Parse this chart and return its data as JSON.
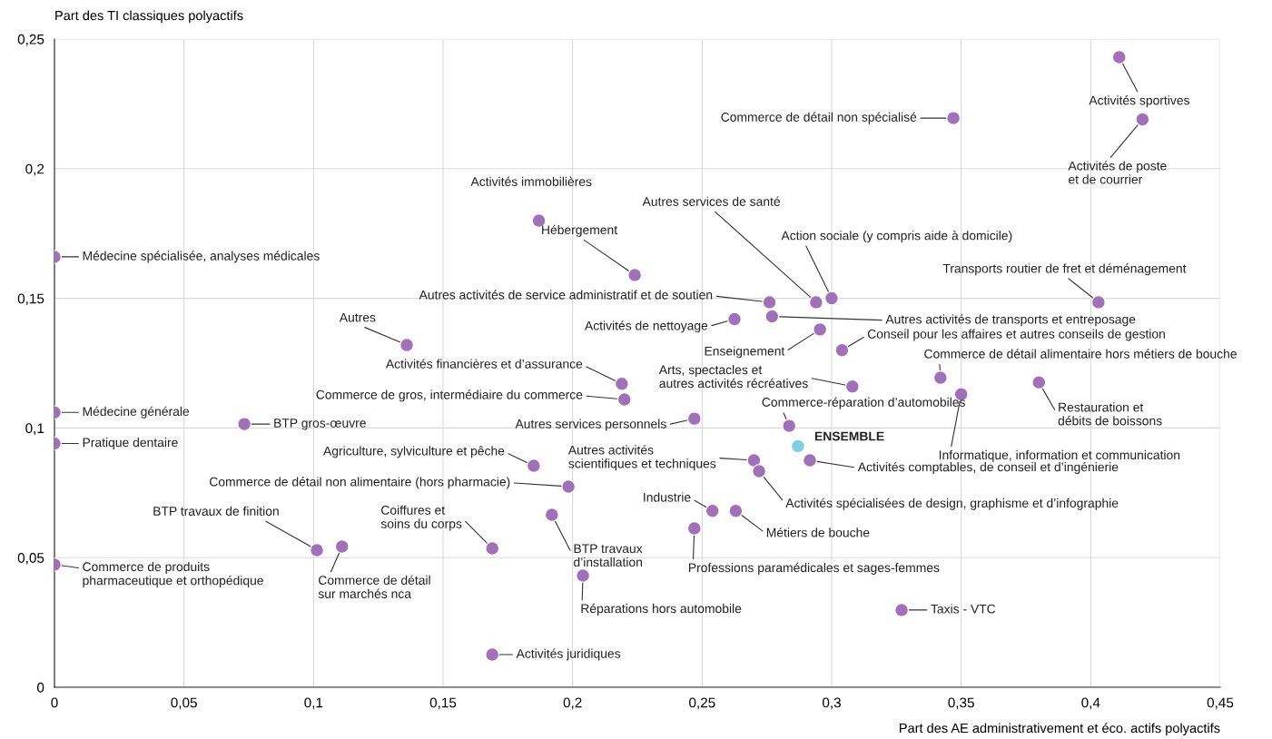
{
  "chart_data": {
    "type": "scatter",
    "xlabel": "Part des AE administrativement et éco. actifs polyactifs",
    "ylabel": "Part des TI classiques polyactifs",
    "xlim": [
      0,
      0.45
    ],
    "ylim": [
      0,
      0.25
    ],
    "xticks": [
      0,
      {
        "value": 0.05,
        "label": "0,05"
      },
      {
        "value": 0.1,
        "label": "0,1"
      },
      {
        "value": 0.15,
        "label": "0,15"
      },
      {
        "value": 0.2,
        "label": "0,2"
      },
      {
        "value": 0.25,
        "label": "0,25"
      },
      {
        "value": 0.3,
        "label": "0,3"
      },
      {
        "value": 0.35,
        "label": "0,35"
      },
      {
        "value": 0.4,
        "label": "0,4"
      },
      {
        "value": 0.45,
        "label": "0,45"
      }
    ],
    "yticks": [
      0,
      {
        "value": 0.05,
        "label": "0,05"
      },
      {
        "value": 0.1,
        "label": "0,1"
      },
      {
        "value": 0.15,
        "label": "0,15"
      },
      {
        "value": 0.2,
        "label": "0,2"
      },
      {
        "value": 0.25,
        "label": "0,25"
      }
    ],
    "grid": true,
    "marker": "circle",
    "series": [
      {
        "color": "#a070b8",
        "x": [
          0.411,
          0.42,
          0.347,
          0.187,
          0,
          0.224,
          0.294,
          0.3,
          0.403,
          0.276,
          0.277,
          0.2625,
          0.136,
          0.2955,
          0.304,
          0.342,
          0.219,
          0.308,
          0.38,
          0.22,
          0.35,
          0,
          0.0733,
          0.247,
          0.2836,
          0,
          0.27,
          0.2916,
          0.185,
          0.272,
          0.1984,
          0.192,
          0.254,
          0.263,
          0.247,
          0.169,
          0.1013,
          0.111,
          0,
          0.204,
          0.327,
          0.169
        ],
        "values": [
          0.243,
          0.219,
          0.2195,
          0.18,
          0.166,
          0.159,
          0.1485,
          0.15,
          0.1485,
          0.1485,
          0.143,
          0.142,
          0.132,
          0.138,
          0.13,
          0.1194,
          0.117,
          0.116,
          0.1176,
          0.111,
          0.113,
          0.106,
          0.1015,
          0.1036,
          0.1008,
          0.094,
          0.0875,
          0.0875,
          0.0854,
          0.0833,
          0.0774,
          0.0665,
          0.068,
          0.068,
          0.0613,
          0.0536,
          0.0529,
          0.0543,
          0.0473,
          0.0431,
          0.0298,
          0.0126
        ]
      },
      {
        "name": "ENSEMBLE",
        "color": "#80d0e4",
        "x": [
          0.287
        ],
        "values": [
          0.093
        ]
      }
    ],
    "annotations": [
      {
        "text": "Activités sportives",
        "x": 0.411,
        "y": 0.243
      },
      {
        "text": "Activités de poste\net de courrier",
        "x": 0.42,
        "y": 0.219
      },
      {
        "text": "Commerce de détail non spécialisé",
        "x": 0.347,
        "y": 0.2195
      },
      {
        "text": "Activités immobilières",
        "x": 0.187,
        "y": 0.18
      },
      {
        "text": "Médecine spécialisée, analyses médicales",
        "x": 0,
        "y": 0.166
      },
      {
        "text": "Hébergement",
        "x": 0.224,
        "y": 0.159
      },
      {
        "text": "Autres services de santé",
        "x": 0.294,
        "y": 0.1485
      },
      {
        "text": "Action sociale (y compris aide à domicile)",
        "x": 0.3,
        "y": 0.15
      },
      {
        "text": "Transports routier de fret et déménagement",
        "x": 0.403,
        "y": 0.1485
      },
      {
        "text": "Autres activités de service administratif et de soutien",
        "x": 0.276,
        "y": 0.1485
      },
      {
        "text": "Autres activités de transports et entreposage",
        "x": 0.277,
        "y": 0.143
      },
      {
        "text": "Activités de nettoyage",
        "x": 0.2625,
        "y": 0.142
      },
      {
        "text": "Autres",
        "x": 0.136,
        "y": 0.132
      },
      {
        "text": "Enseignement",
        "x": 0.2955,
        "y": 0.138
      },
      {
        "text": "Conseil pour les affaires et autres conseils de gestion",
        "x": 0.304,
        "y": 0.13
      },
      {
        "text": "Commerce de détail alimentaire hors métiers de bouche",
        "x": 0.342,
        "y": 0.1194
      },
      {
        "text": "Activités financières et d’assurance",
        "x": 0.219,
        "y": 0.117
      },
      {
        "text": "Arts, spectacles et\nautres activités récréatives",
        "x": 0.308,
        "y": 0.116
      },
      {
        "text": "Restauration et\ndébits de boissons",
        "x": 0.38,
        "y": 0.1176
      },
      {
        "text": "Commerce de gros, intermédiaire du commerce",
        "x": 0.22,
        "y": 0.111
      },
      {
        "text": "Informatique, information et communication",
        "x": 0.35,
        "y": 0.113
      },
      {
        "text": "Médecine générale",
        "x": 0,
        "y": 0.106
      },
      {
        "text": "BTP gros-œuvre",
        "x": 0.0733,
        "y": 0.1015
      },
      {
        "text": "Autres services personnels",
        "x": 0.247,
        "y": 0.1036
      },
      {
        "text": "Commerce-réparation d’automobiles",
        "x": 0.2836,
        "y": 0.1008
      },
      {
        "text": "Pratique dentaire",
        "x": 0,
        "y": 0.094
      },
      {
        "text": "Autres activités\nscientifiques et techniques",
        "x": 0.27,
        "y": 0.0875
      },
      {
        "text": "Activités comptables, de conseil et d’ingénierie",
        "x": 0.2916,
        "y": 0.0875
      },
      {
        "text": "Agriculture, sylviculture et pêche",
        "x": 0.185,
        "y": 0.0854
      },
      {
        "text": "Activités spécialisées de design, graphisme et d’infographie",
        "x": 0.272,
        "y": 0.0833
      },
      {
        "text": "Commerce de détail non alimentaire (hors pharmacie)",
        "x": 0.1984,
        "y": 0.0774
      },
      {
        "text": "BTP travaux\nd’installation",
        "x": 0.192,
        "y": 0.0665
      },
      {
        "text": "Industrie",
        "x": 0.254,
        "y": 0.068
      },
      {
        "text": "Métiers de bouche",
        "x": 0.263,
        "y": 0.068
      },
      {
        "text": "Professions paramédicales et sages-femmes",
        "x": 0.247,
        "y": 0.0613
      },
      {
        "text": "Coiffures et\nsoins du corps",
        "x": 0.169,
        "y": 0.0536
      },
      {
        "text": "BTP travaux de finition",
        "x": 0.1013,
        "y": 0.0529
      },
      {
        "text": "Commerce de détail\nsur marchés nca",
        "x": 0.111,
        "y": 0.0543
      },
      {
        "text": "Commerce de produits\npharmaceutique et orthopédique",
        "x": 0,
        "y": 0.0473
      },
      {
        "text": "Réparations hors automobile",
        "x": 0.204,
        "y": 0.0431
      },
      {
        "text": "Taxis - VTC",
        "x": 0.327,
        "y": 0.0298
      },
      {
        "text": "Activités juridiques",
        "x": 0.169,
        "y": 0.0126
      }
    ]
  }
}
